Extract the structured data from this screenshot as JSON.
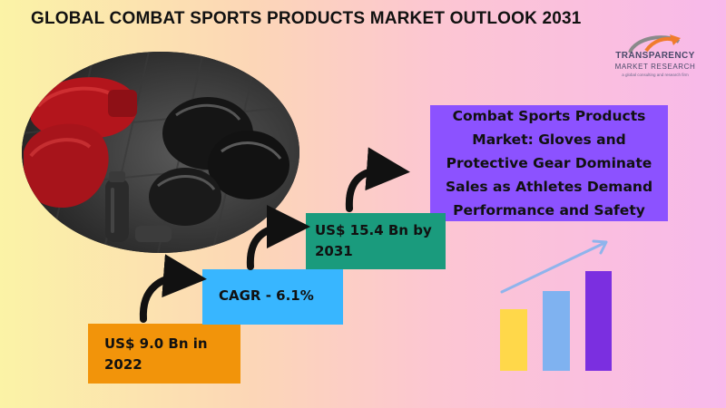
{
  "title": "GLOBAL COMBAT SPORTS PRODUCTS MARKET OUTLOOK 2031",
  "logo": {
    "line1": "TRANSPARENCY",
    "line2": "MARKET RESEARCH",
    "tagline": "a global consulting and research firm",
    "colors": {
      "gray": "#8a8a8a",
      "orange": "#f07c2c",
      "text": "#4a4a6a"
    }
  },
  "headline": "Combat Sports Products Market: Gloves and Protective Gear Dominate Sales as Athletes Demand Performance and Safety",
  "steps": [
    {
      "label": "US$ 9.0 Bn in 2022",
      "color": "#f2940a"
    },
    {
      "label": "CAGR - 6.1%",
      "color": "#38b6ff"
    },
    {
      "label": "US$ 15.4 Bn by 2031",
      "color": "#1a9b7d"
    }
  ],
  "icons": {
    "photo": "boxing-gloves-photo",
    "arrows": "curved-arrow-icon",
    "chart": "bar-chart-growth-icon"
  },
  "growth_chart": {
    "bar_colors": [
      "#ffd84a",
      "#7fb2f0",
      "#7b2fe0"
    ],
    "relative_levels": [
      0.62,
      0.8,
      1.0
    ],
    "arrow_color": "#8fb4ec"
  }
}
